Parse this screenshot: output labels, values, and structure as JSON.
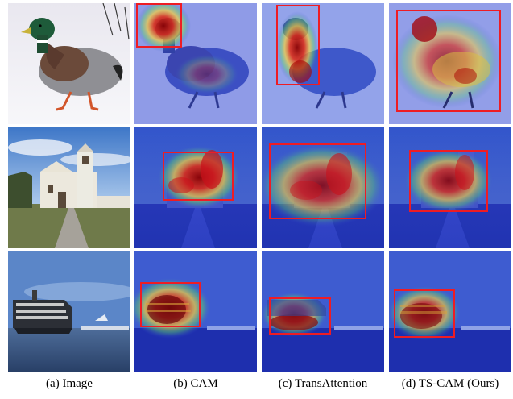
{
  "columns": [
    {
      "caption": "(a) Image"
    },
    {
      "caption": "(b) CAM"
    },
    {
      "caption": "(c) TransAttention"
    },
    {
      "caption": "(d) TS-CAM (Ours)"
    }
  ],
  "rows": [
    {
      "subject": "duck"
    },
    {
      "subject": "church"
    },
    {
      "subject": "ship"
    }
  ],
  "colors": {
    "box": "#ee1c24",
    "heat_cold": "#3b4fd8",
    "heat_hot": "#c81e12"
  }
}
